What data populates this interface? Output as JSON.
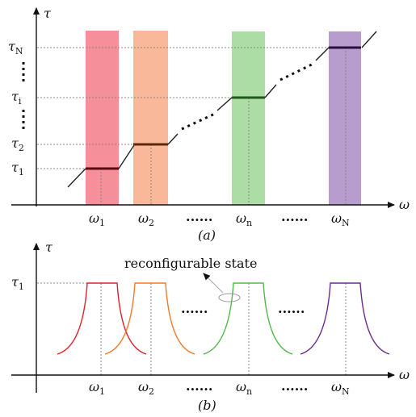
{
  "panel_a": {
    "caption": "(a)",
    "y_axis_symbol": "τ",
    "x_axis_symbol": "ω",
    "y_tick_labels": [
      {
        "base": "τ",
        "sub": "N"
      },
      {
        "base": "τ",
        "sub": "i"
      },
      {
        "base": "τ",
        "sub": "2"
      },
      {
        "base": "τ",
        "sub": "1"
      }
    ],
    "x_tick_labels": [
      {
        "base": "ω",
        "sub": "1"
      },
      {
        "base": "ω",
        "sub": "2"
      },
      {
        "base": "ω",
        "sub": "n"
      },
      {
        "base": "ω",
        "sub": "N"
      }
    ],
    "ellipsis": "......",
    "band_colors": [
      "#f4838e",
      "#f9b08f",
      "#a3d99a",
      "#ae92c8"
    ],
    "plateau_color": "#222222"
  },
  "panel_b": {
    "caption": "(b)",
    "y_axis_symbol": "τ",
    "x_axis_symbol": "ω",
    "y_tick_label": {
      "base": "τ",
      "sub": "1"
    },
    "x_tick_labels": [
      {
        "base": "ω",
        "sub": "1"
      },
      {
        "base": "ω",
        "sub": "2"
      },
      {
        "base": "ω",
        "sub": "n"
      },
      {
        "base": "ω",
        "sub": "N"
      }
    ],
    "annotation": "reconfigurable state",
    "ellipsis": "......",
    "curve_colors": [
      "#e0202a",
      "#f07a2a",
      "#52b84a",
      "#6a2a8f"
    ]
  }
}
